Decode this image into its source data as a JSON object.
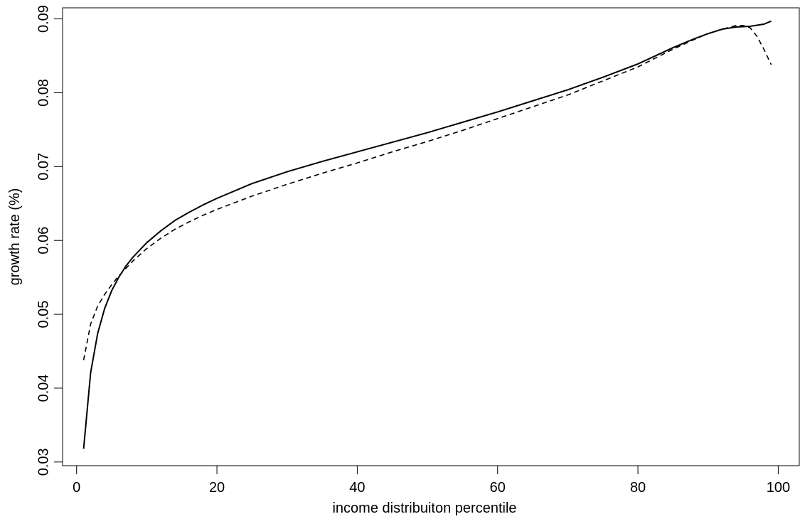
{
  "chart_data": {
    "type": "line",
    "title": "",
    "xlabel": "income distribuiton percentile",
    "ylabel": "growth rate (%)",
    "xlim": [
      -2,
      103
    ],
    "ylim": [
      0.0295,
      0.0915
    ],
    "x_ticks": [
      0,
      20,
      40,
      60,
      80,
      100
    ],
    "x_tick_labels": [
      "0",
      "20",
      "40",
      "60",
      "80",
      "100"
    ],
    "y_ticks": [
      0.03,
      0.04,
      0.05,
      0.06,
      0.07,
      0.08,
      0.09
    ],
    "y_tick_labels": [
      "0.03",
      "0.04",
      "0.05",
      "0.06",
      "0.07",
      "0.08",
      "0.09"
    ],
    "grid": false,
    "legend": "none",
    "series": [
      {
        "style": "solid",
        "color": "#000000",
        "x": [
          1,
          2,
          3,
          4,
          5,
          6,
          7,
          8,
          10,
          12,
          14,
          16,
          18,
          20,
          25,
          30,
          35,
          40,
          45,
          50,
          55,
          60,
          65,
          70,
          75,
          80,
          85,
          88,
          90,
          92,
          94,
          96,
          98,
          99
        ],
        "y": [
          0.0318,
          0.0421,
          0.0474,
          0.0508,
          0.0532,
          0.055,
          0.0565,
          0.0577,
          0.0597,
          0.0613,
          0.0627,
          0.0638,
          0.0648,
          0.0657,
          0.0677,
          0.0693,
          0.0707,
          0.072,
          0.0733,
          0.0746,
          0.076,
          0.0774,
          0.0789,
          0.0804,
          0.0821,
          0.0839,
          0.0861,
          0.0873,
          0.088,
          0.0886,
          0.0889,
          0.089,
          0.0893,
          0.0897
        ]
      },
      {
        "style": "dashed",
        "color": "#000000",
        "x": [
          1,
          2,
          3,
          4,
          5,
          6,
          7,
          8,
          10,
          12,
          14,
          16,
          18,
          20,
          25,
          30,
          35,
          40,
          45,
          50,
          55,
          60,
          65,
          70,
          75,
          80,
          85,
          88,
          90,
          92,
          94,
          95,
          96,
          97,
          98,
          99
        ],
        "y": [
          0.0438,
          0.0487,
          0.0511,
          0.0527,
          0.054,
          0.0552,
          0.0562,
          0.0572,
          0.0589,
          0.0603,
          0.0615,
          0.0625,
          0.0634,
          0.0642,
          0.066,
          0.0676,
          0.0691,
          0.0705,
          0.072,
          0.0734,
          0.0749,
          0.0765,
          0.0781,
          0.0797,
          0.0816,
          0.0835,
          0.0859,
          0.0872,
          0.088,
          0.0886,
          0.0891,
          0.0891,
          0.0888,
          0.0876,
          0.0858,
          0.0838
        ]
      }
    ]
  }
}
